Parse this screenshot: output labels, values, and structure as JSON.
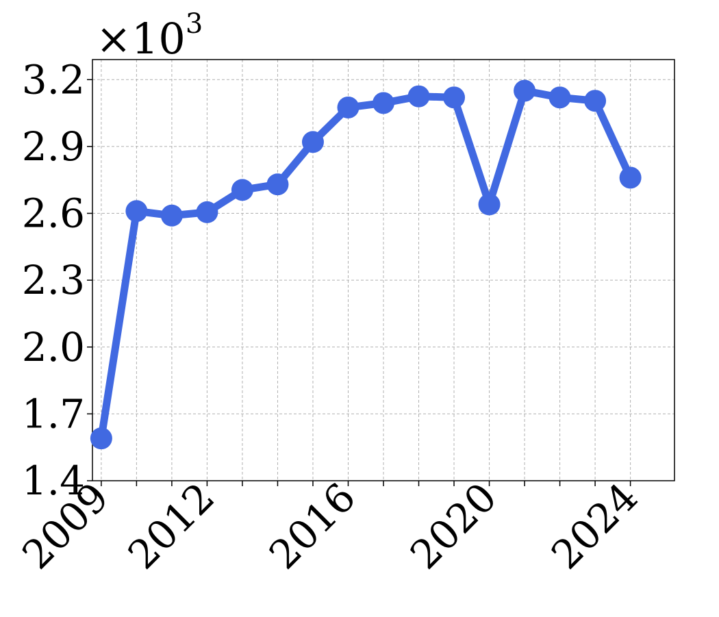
{
  "chart_data": {
    "type": "line",
    "title": "",
    "xlabel": "",
    "ylabel": "",
    "y_scale_label": "×10",
    "y_scale_exponent": "3",
    "x": [
      2009,
      2010,
      2011,
      2012,
      2013,
      2014,
      2015,
      2016,
      2017,
      2018,
      2019,
      2020,
      2021,
      2022,
      2023,
      2024
    ],
    "series": [
      {
        "values": [
          1590,
          2610,
          2590,
          2605,
          2705,
          2730,
          2920,
          3075,
          3095,
          3125,
          3120,
          2640,
          3150,
          3120,
          3105,
          2760
        ],
        "color": "#4169e1"
      }
    ],
    "x_ticks": [
      2009,
      2012,
      2016,
      2020,
      2024
    ],
    "x_tick_labels": [
      "2009",
      "2012",
      "2016",
      "2020",
      "2024"
    ],
    "y_ticks": [
      1400,
      1700,
      2000,
      2300,
      2600,
      2900,
      3200
    ],
    "y_tick_labels": [
      "1.4",
      "1.7",
      "2.0",
      "2.3",
      "2.6",
      "2.9",
      "3.2"
    ],
    "xlim": [
      2008.75,
      2025.25
    ],
    "ylim": [
      1400,
      3290
    ],
    "grid": true,
    "legend": "none"
  }
}
